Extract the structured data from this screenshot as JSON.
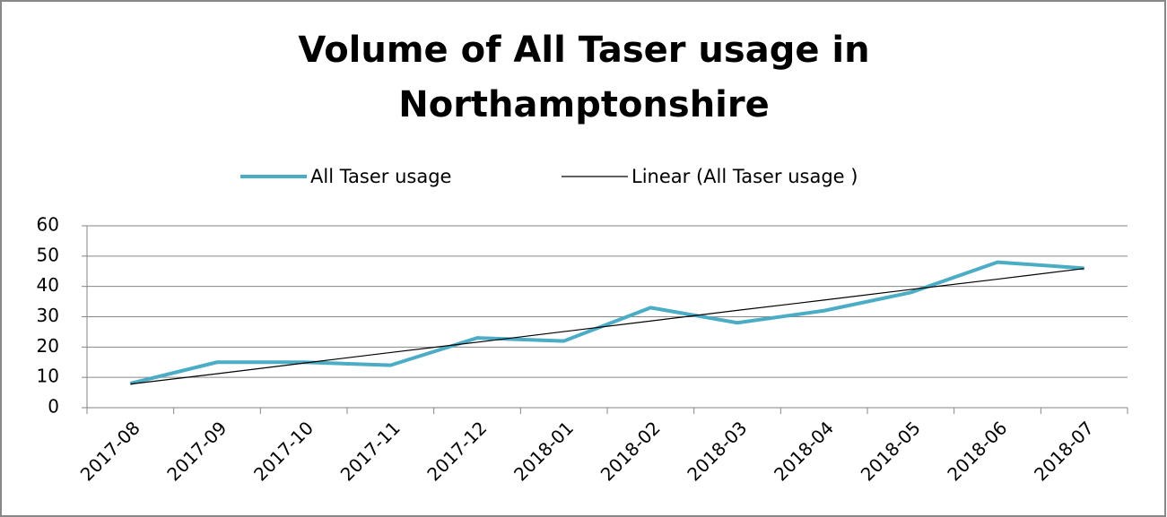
{
  "chart_data": {
    "type": "line",
    "title": [
      "Volume of All Taser usage in",
      "Northamptonshire"
    ],
    "categories": [
      "2017-08",
      "2017-09",
      "2017-10",
      "2017-11",
      "2017-12",
      "2018-01",
      "2018-02",
      "2018-03",
      "2018-04",
      "2018-05",
      "2018-06",
      "2018-07"
    ],
    "series": [
      {
        "name": "All Taser usage",
        "color": "#4bacc6",
        "values": [
          8,
          15,
          15,
          14,
          23,
          22,
          33,
          28,
          32,
          38,
          48,
          46
        ]
      },
      {
        "name": "Linear (All Taser usage )",
        "color": "#000000",
        "values": [
          7.8,
          11.2,
          14.7,
          18.2,
          21.6,
          25.1,
          28.6,
          32.1,
          35.5,
          39.0,
          42.4,
          45.9
        ]
      }
    ],
    "ylim": [
      0,
      60
    ],
    "yticks": [
      0,
      10,
      20,
      30,
      40,
      50,
      60
    ],
    "grid": true,
    "legend": "top"
  }
}
